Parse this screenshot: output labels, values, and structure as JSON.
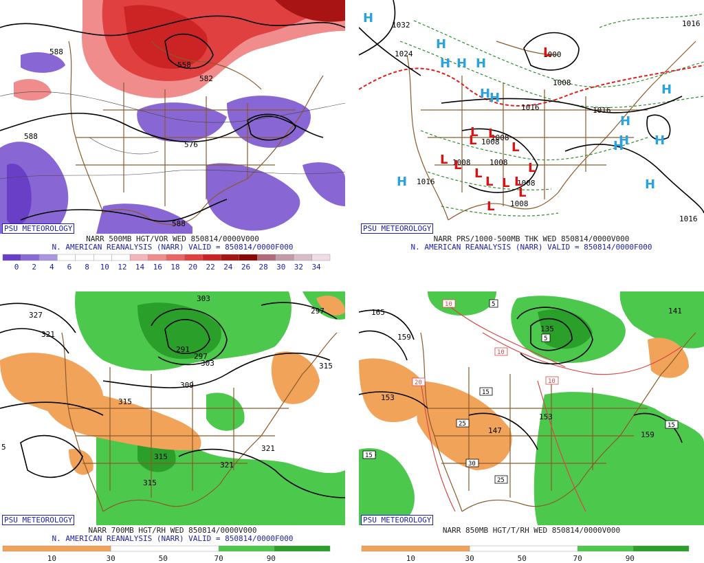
{
  "badge": "PSU METEOROLOGY",
  "panels": {
    "tl": {
      "caption1": "NARR 500MB HGT/VOR WED 850814/0000V000",
      "caption2": "N. AMERICAN REANALYSIS (NARR) VALID = 850814/0000F000",
      "contour_labels": [
        "588",
        "558",
        "576",
        "582",
        "588",
        "588"
      ],
      "legend": {
        "ticks": [
          "0",
          "2",
          "4",
          "6",
          "8",
          "10",
          "12",
          "14",
          "16",
          "18",
          "20",
          "22",
          "24",
          "26",
          "28",
          "30",
          "32",
          "34"
        ],
        "colors": [
          "#6a3fc7",
          "#8a6ad6",
          "#a996e0",
          "#ffffff",
          "#ffffff",
          "#ffffff",
          "#ffffff",
          "#f4b6b6",
          "#f08c8c",
          "#ea6464",
          "#e04040",
          "#cc2424",
          "#a81414",
          "#880808",
          "#b06a7a",
          "#c29aa8",
          "#d8bcc8",
          "#f0dce4"
        ]
      }
    },
    "tr": {
      "caption1": "NARR PRS/1000-500MB THK WED 850814/0000V000",
      "caption2": "N. AMERICAN REANALYSIS (NARR) VALID = 850814/0000F000",
      "contour_labels": [
        "1032",
        "1024",
        "1000",
        "1008",
        "1016",
        "1016",
        "1008",
        "1008",
        "1008",
        "1008",
        "1016",
        "1016",
        "1016",
        "1016",
        "1008",
        "1008"
      ],
      "high_letter": "H",
      "low_letter": "L"
    },
    "bl": {
      "caption1": "NARR 700MB HGT/RH WED 850814/0000V000",
      "caption2": "N. AMERICAN REANALYSIS (NARR) VALID = 850814/0000F000",
      "contour_labels": [
        "327",
        "321",
        "303",
        "297",
        "291",
        "297",
        "303",
        "309",
        "315",
        "315",
        "315",
        "315",
        "321",
        "321",
        "5"
      ],
      "legend": {
        "ticks": [
          "10",
          "30",
          "50",
          "70",
          "90"
        ]
      }
    },
    "br": {
      "caption1": "NARR 850MB HGT/T/RH WED 850814/0000V000",
      "contour_labels": [
        "165",
        "159",
        "153",
        "153",
        "153",
        "159",
        "141",
        "135",
        "5",
        "10",
        "10",
        "10",
        "15",
        "15",
        "15",
        "20",
        "25",
        "25",
        "30",
        "5",
        "147"
      ],
      "legend": {
        "ticks": [
          "10",
          "30",
          "50",
          "70",
          "90"
        ]
      }
    }
  }
}
